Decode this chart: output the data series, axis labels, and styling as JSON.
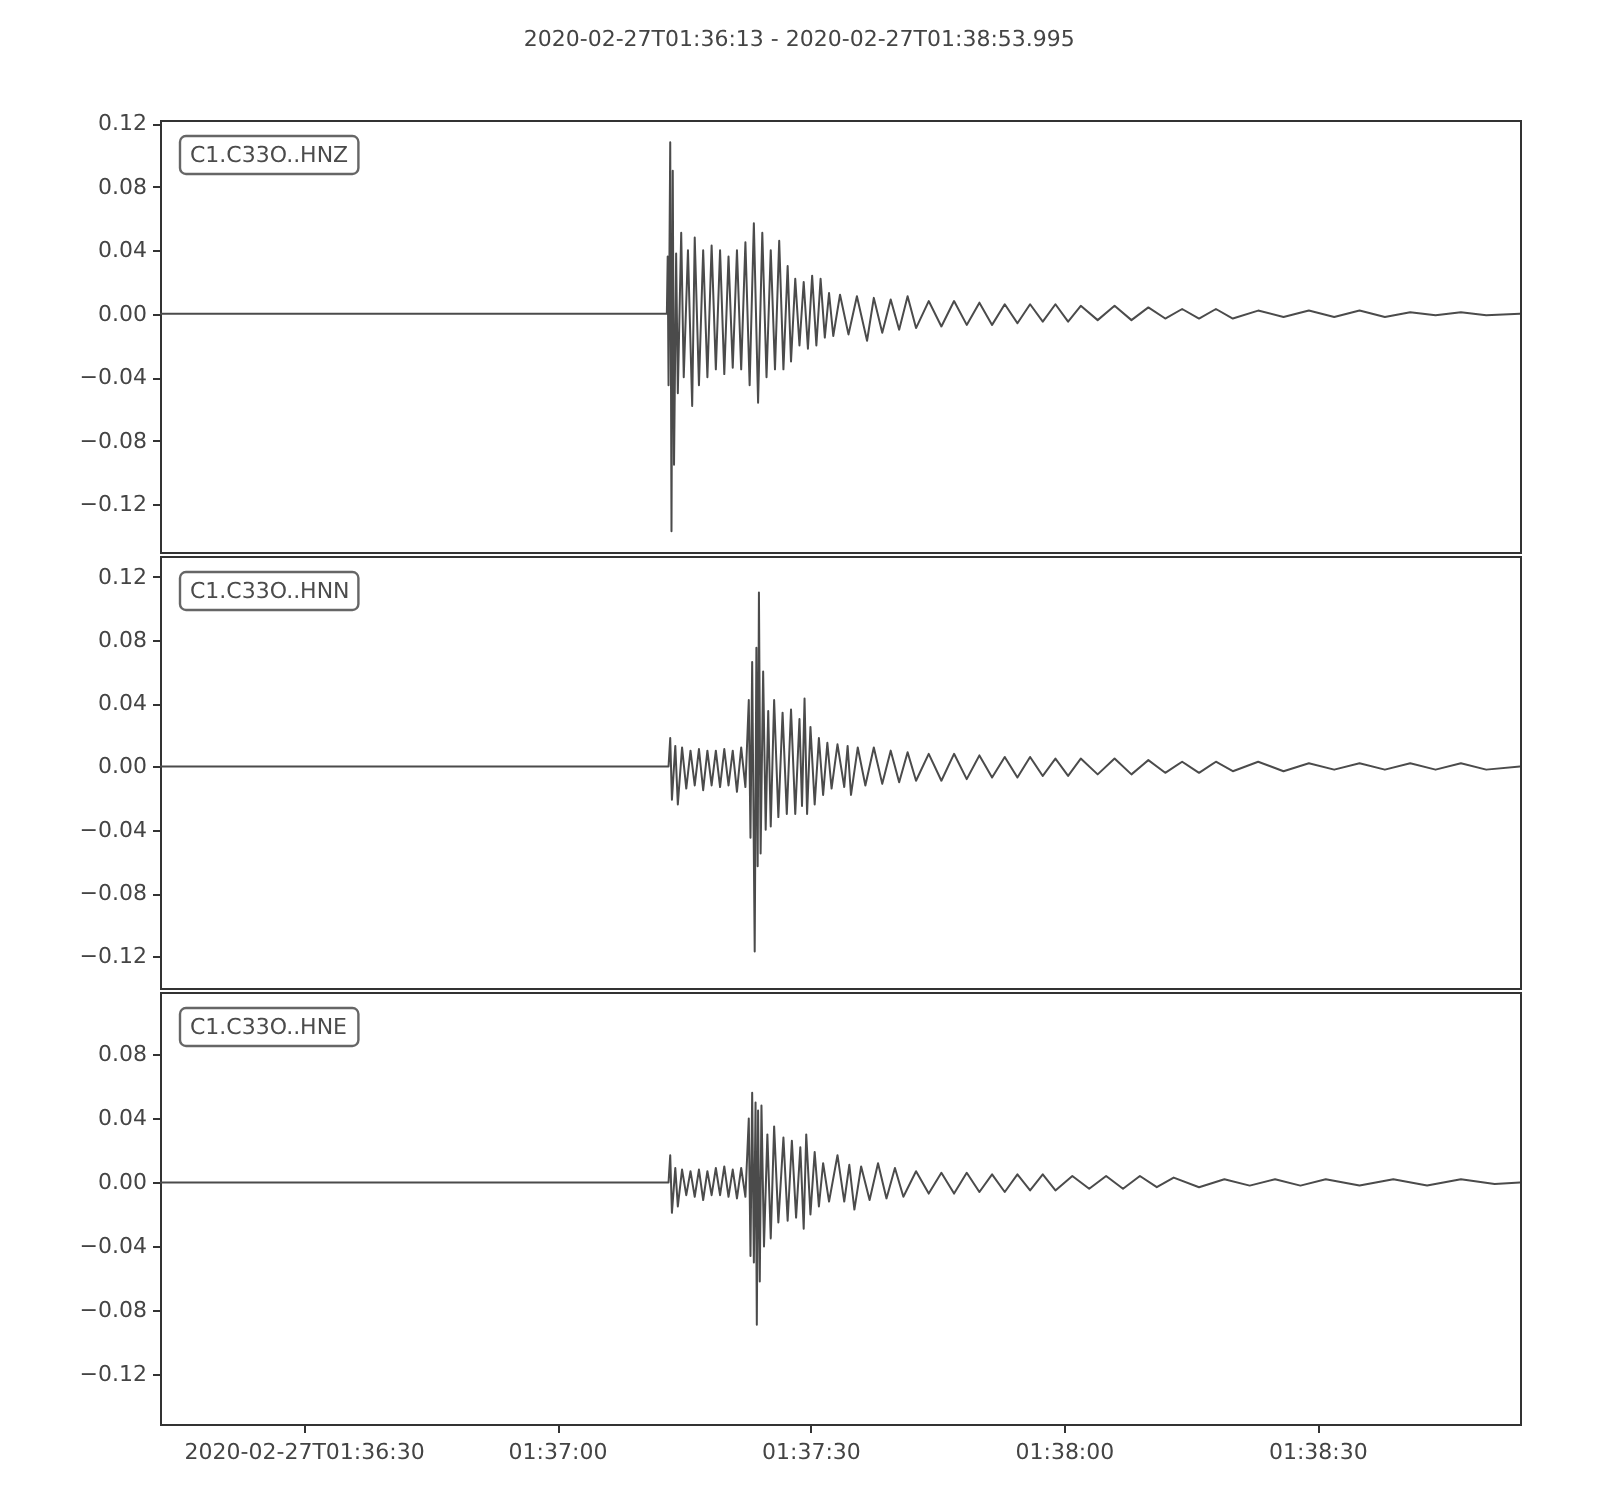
{
  "chart_data": [
    {
      "type": "line",
      "title": "2020-02-27T01:36:13  -  2020-02-27T01:38:53.995",
      "legend": "top left",
      "tick_labels": "y",
      "xlim": [
        "2020-02-27T01:36:13",
        "2020-02-27T01:38:53.995"
      ],
      "ylim": [
        -0.15,
        0.122
      ],
      "yticks": [
        {
          "value": -0.12,
          "label": "−0.12"
        },
        {
          "value": -0.08,
          "label": "−0.08"
        },
        {
          "value": -0.04,
          "label": "−0.04"
        },
        {
          "value": 0,
          "label": "0.00"
        },
        0.04,
        0.08,
        0.12
      ],
      "series": [
        {
          "name": "C1.C33O..HNZ",
          "color": "#4b4b4b",
          "x": [
            "2020-02-27T01:36:13",
            "2020-02-27T01:37:13",
            "2020-02-27T01:37:13.1",
            "2020-02-27T01:37:13.2",
            "2020-02-27T01:37:13.4",
            "2020-02-27T01:37:13.55",
            "2020-02-27T01:37:13.7",
            "2020-02-27T01:37:13.85",
            "2020-02-27T01:37:14.1",
            "2020-02-27T01:37:14.3",
            "2020-02-27T01:37:14.7",
            "2020-02-27T01:37:15",
            "2020-02-27T01:37:15.5",
            "2020-02-27T01:37:16",
            "2020-02-27T01:37:16.3",
            "2020-02-27T01:37:16.8",
            "2020-02-27T01:37:17.3",
            "2020-02-27T01:37:17.8",
            "2020-02-27T01:37:18.3",
            "2020-02-27T01:37:18.8",
            "2020-02-27T01:37:19.3",
            "2020-02-27T01:37:19.8",
            "2020-02-27T01:37:20.3",
            "2020-02-27T01:37:20.8",
            "2020-02-27T01:37:21.3",
            "2020-02-27T01:37:21.8",
            "2020-02-27T01:37:22.3",
            "2020-02-27T01:37:22.8",
            "2020-02-27T01:37:23.3",
            "2020-02-27T01:37:23.8",
            "2020-02-27T01:37:24.3",
            "2020-02-27T01:37:24.8",
            "2020-02-27T01:37:25.3",
            "2020-02-27T01:37:25.8",
            "2020-02-27T01:37:26.3",
            "2020-02-27T01:37:26.8",
            "2020-02-27T01:37:27.3",
            "2020-02-27T01:37:27.7",
            "2020-02-27T01:37:28.2",
            "2020-02-27T01:37:28.7",
            "2020-02-27T01:37:29.2",
            "2020-02-27T01:37:29.7",
            "2020-02-27T01:37:30.2",
            "2020-02-27T01:37:30.7",
            "2020-02-27T01:37:31.2",
            "2020-02-27T01:37:31.7",
            "2020-02-27T01:37:32.2",
            "2020-02-27T01:37:32.7",
            "2020-02-27T01:37:33.5",
            "2020-02-27T01:37:34.5",
            "2020-02-27T01:37:35.5",
            "2020-02-27T01:37:36.7",
            "2020-02-27T01:37:37.5",
            "2020-02-27T01:37:38.5",
            "2020-02-27T01:37:39.5",
            "2020-02-27T01:37:40.5",
            "2020-02-27T01:37:41.5",
            "2020-02-27T01:37:42.5",
            "2020-02-27T01:37:44",
            "2020-02-27T01:37:45.5",
            "2020-02-27T01:37:47",
            "2020-02-27T01:37:48.5",
            "2020-02-27T01:37:50",
            "2020-02-27T01:37:51.5",
            "2020-02-27T01:37:53",
            "2020-02-27T01:37:54.5",
            "2020-02-27T01:37:56",
            "2020-02-27T01:37:57.5",
            "2020-02-27T01:37:59",
            "2020-02-27T01:38:00.5",
            "2020-02-27T01:38:02",
            "2020-02-27T01:38:04",
            "2020-02-27T01:38:06",
            "2020-02-27T01:38:08",
            "2020-02-27T01:38:10",
            "2020-02-27T01:38:12",
            "2020-02-27T01:38:14",
            "2020-02-27T01:38:16",
            "2020-02-27T01:38:18",
            "2020-02-27T01:38:20",
            "2020-02-27T01:38:23",
            "2020-02-27T01:38:26",
            "2020-02-27T01:38:29",
            "2020-02-27T01:38:32",
            "2020-02-27T01:38:35",
            "2020-02-27T01:38:38",
            "2020-02-27T01:38:41",
            "2020-02-27T01:38:44",
            "2020-02-27T01:38:47",
            "2020-02-27T01:38:50",
            "2020-02-27T01:38:53.995"
          ],
          "values": [
            0,
            0,
            0.036,
            -0.045,
            0.108,
            -0.137,
            0.09,
            -0.095,
            0.038,
            -0.05,
            0.051,
            -0.04,
            0.04,
            -0.058,
            0.048,
            -0.045,
            0.04,
            -0.04,
            0.043,
            -0.035,
            0.04,
            -0.038,
            0.036,
            -0.034,
            0.04,
            -0.035,
            0.045,
            -0.045,
            0.057,
            -0.056,
            0.051,
            -0.04,
            0.04,
            -0.035,
            0.046,
            -0.035,
            0.03,
            -0.03,
            0.022,
            -0.02,
            0.02,
            -0.022,
            0.024,
            -0.02,
            0.022,
            -0.015,
            0.013,
            -0.014,
            0.012,
            -0.013,
            0.011,
            -0.017,
            0.01,
            -0.012,
            0.009,
            -0.01,
            0.011,
            -0.009,
            0.008,
            -0.008,
            0.008,
            -0.007,
            0.007,
            -0.007,
            0.006,
            -0.006,
            0.006,
            -0.005,
            0.006,
            -0.005,
            0.005,
            -0.004,
            0.005,
            -0.004,
            0.004,
            -0.003,
            0.003,
            -0.003,
            0.003,
            -0.003,
            0.002,
            -0.002,
            0.002,
            -0.002,
            0.002,
            -0.002,
            0.001,
            -0.001,
            0.001,
            -0.001,
            0
          ]
        }
      ]
    },
    {
      "type": "line",
      "legend": "top left",
      "tick_labels": "y",
      "xlim": [
        "2020-02-27T01:36:13",
        "2020-02-27T01:38:53.995"
      ],
      "ylim": [
        -0.14,
        0.133
      ],
      "yticks": [
        {
          "value": -0.12,
          "label": "−0.12"
        },
        {
          "value": -0.08,
          "label": "−0.08"
        },
        {
          "value": -0.04,
          "label": "−0.04"
        },
        {
          "value": 0,
          "label": "0.00"
        },
        0.04,
        0.08,
        0.12
      ],
      "series": [
        {
          "name": "C1.C33O..HNN",
          "color": "#4b4b4b",
          "x": [
            "2020-02-27T01:36:13",
            "2020-02-27T01:37:13.2",
            "2020-02-27T01:37:13.4",
            "2020-02-27T01:37:13.6",
            "2020-02-27T01:37:14",
            "2020-02-27T01:37:14.3",
            "2020-02-27T01:37:14.8",
            "2020-02-27T01:37:15.3",
            "2020-02-27T01:37:15.8",
            "2020-02-27T01:37:16.3",
            "2020-02-27T01:37:16.8",
            "2020-02-27T01:37:17.3",
            "2020-02-27T01:37:17.8",
            "2020-02-27T01:37:18.3",
            "2020-02-27T01:37:18.8",
            "2020-02-27T01:37:19.3",
            "2020-02-27T01:37:19.8",
            "2020-02-27T01:37:20.3",
            "2020-02-27T01:37:20.8",
            "2020-02-27T01:37:21.3",
            "2020-02-27T01:37:21.8",
            "2020-02-27T01:37:22.3",
            "2020-02-27T01:37:22.7",
            "2020-02-27T01:37:22.9",
            "2020-02-27T01:37:23.1",
            "2020-02-27T01:37:23.4",
            "2020-02-27T01:37:23.6",
            "2020-02-27T01:37:23.75",
            "2020-02-27T01:37:23.9",
            "2020-02-27T01:37:24.1",
            "2020-02-27T01:37:24.4",
            "2020-02-27T01:37:24.7",
            "2020-02-27T01:37:25",
            "2020-02-27T01:37:25.3",
            "2020-02-27T01:37:25.7",
            "2020-02-27T01:37:26.2",
            "2020-02-27T01:37:26.7",
            "2020-02-27T01:37:27.2",
            "2020-02-27T01:37:27.7",
            "2020-02-27T01:37:28.2",
            "2020-02-27T01:37:28.7",
            "2020-02-27T01:37:29",
            "2020-02-27T01:37:29.3",
            "2020-02-27T01:37:29.6",
            "2020-02-27T01:37:30",
            "2020-02-27T01:37:30.5",
            "2020-02-27T01:37:31",
            "2020-02-27T01:37:31.5",
            "2020-02-27T01:37:32",
            "2020-02-27T01:37:32.5",
            "2020-02-27T01:37:33.2",
            "2020-02-27T01:37:34",
            "2020-02-27T01:37:34.4",
            "2020-02-27T01:37:34.8",
            "2020-02-27T01:37:35.6",
            "2020-02-27T01:37:36.5",
            "2020-02-27T01:37:37.5",
            "2020-02-27T01:37:38.5",
            "2020-02-27T01:37:39.5",
            "2020-02-27T01:37:40.5",
            "2020-02-27T01:37:41.5",
            "2020-02-27T01:37:42.5",
            "2020-02-27T01:37:44",
            "2020-02-27T01:37:45.5",
            "2020-02-27T01:37:47",
            "2020-02-27T01:37:48.5",
            "2020-02-27T01:37:50",
            "2020-02-27T01:37:51.5",
            "2020-02-27T01:37:53",
            "2020-02-27T01:37:54.5",
            "2020-02-27T01:37:56",
            "2020-02-27T01:37:57.5",
            "2020-02-27T01:37:59",
            "2020-02-27T01:38:00.5",
            "2020-02-27T01:38:02",
            "2020-02-27T01:38:04",
            "2020-02-27T01:38:06",
            "2020-02-27T01:38:08",
            "2020-02-27T01:38:10",
            "2020-02-27T01:38:12",
            "2020-02-27T01:38:14",
            "2020-02-27T01:38:16",
            "2020-02-27T01:38:18",
            "2020-02-27T01:38:20",
            "2020-02-27T01:38:23",
            "2020-02-27T01:38:26",
            "2020-02-27T01:38:29",
            "2020-02-27T01:38:32",
            "2020-02-27T01:38:35",
            "2020-02-27T01:38:38",
            "2020-02-27T01:38:41",
            "2020-02-27T01:38:44",
            "2020-02-27T01:38:47",
            "2020-02-27T01:38:50",
            "2020-02-27T01:38:53.995"
          ],
          "values": [
            0,
            0,
            0.018,
            -0.021,
            0.013,
            -0.024,
            0.012,
            -0.014,
            0.01,
            -0.012,
            0.011,
            -0.015,
            0.01,
            -0.012,
            0.01,
            -0.013,
            0.011,
            -0.012,
            0.01,
            -0.016,
            0.012,
            -0.013,
            0.042,
            -0.045,
            0.066,
            -0.117,
            0.075,
            -0.063,
            0.11,
            -0.055,
            0.06,
            -0.04,
            0.035,
            -0.038,
            0.042,
            -0.032,
            0.034,
            -0.03,
            0.036,
            -0.03,
            0.03,
            -0.025,
            0.043,
            -0.03,
            0.025,
            -0.024,
            0.018,
            -0.018,
            0.015,
            -0.014,
            0.014,
            -0.013,
            0.013,
            -0.018,
            0.012,
            -0.012,
            0.012,
            -0.011,
            0.01,
            -0.01,
            0.009,
            -0.009,
            0.008,
            -0.009,
            0.008,
            -0.008,
            0.007,
            -0.007,
            0.006,
            -0.007,
            0.006,
            -0.006,
            0.005,
            -0.006,
            0.005,
            -0.005,
            0.005,
            -0.005,
            0.004,
            -0.004,
            0.003,
            -0.004,
            0.003,
            -0.003,
            0.003,
            -0.003,
            0.002,
            -0.002,
            0.002,
            -0.002,
            0.002,
            -0.002,
            0.002,
            -0.002,
            0
          ]
        }
      ]
    },
    {
      "type": "line",
      "legend": "top left",
      "xlim": [
        "2020-02-27T01:36:13",
        "2020-02-27T01:38:53.995"
      ],
      "xticks": [
        {
          "value": "2020-02-27T01:36:30",
          "label": "2020-02-27T01:36:30"
        },
        {
          "value": "2020-02-27T01:37:00",
          "label": "01:37:00"
        },
        {
          "value": "2020-02-27T01:37:30",
          "label": "01:37:30"
        },
        {
          "value": "2020-02-27T01:38:00",
          "label": "01:38:00"
        },
        {
          "value": "2020-02-27T01:38:30",
          "label": "01:38:30"
        }
      ],
      "ylim": [
        -0.151,
        0.119
      ],
      "yticks": [
        {
          "value": -0.12,
          "label": "−0.12"
        },
        {
          "value": -0.08,
          "label": "−0.08"
        },
        {
          "value": -0.04,
          "label": "−0.04"
        },
        {
          "value": 0,
          "label": "0.00"
        },
        0.04,
        0.08
      ],
      "series": [
        {
          "name": "C1.C33O..HNE",
          "color": "#4b4b4b",
          "x": [
            "2020-02-27T01:36:13",
            "2020-02-27T01:37:13.2",
            "2020-02-27T01:37:13.4",
            "2020-02-27T01:37:13.6",
            "2020-02-27T01:37:14",
            "2020-02-27T01:37:14.3",
            "2020-02-27T01:37:14.8",
            "2020-02-27T01:37:15.3",
            "2020-02-27T01:37:15.8",
            "2020-02-27T01:37:16.3",
            "2020-02-27T01:37:16.8",
            "2020-02-27T01:37:17.3",
            "2020-02-27T01:37:17.8",
            "2020-02-27T01:37:18.3",
            "2020-02-27T01:37:18.8",
            "2020-02-27T01:37:19.3",
            "2020-02-27T01:37:19.8",
            "2020-02-27T01:37:20.3",
            "2020-02-27T01:37:20.8",
            "2020-02-27T01:37:21.3",
            "2020-02-27T01:37:21.8",
            "2020-02-27T01:37:22.3",
            "2020-02-27T01:37:22.7",
            "2020-02-27T01:37:22.9",
            "2020-02-27T01:37:23.1",
            "2020-02-27T01:37:23.3",
            "2020-02-27T01:37:23.5",
            "2020-02-27T01:37:23.65",
            "2020-02-27T01:37:23.8",
            "2020-02-27T01:37:24",
            "2020-02-27T01:37:24.2",
            "2020-02-27T01:37:24.5",
            "2020-02-27T01:37:24.9",
            "2020-02-27T01:37:25.3",
            "2020-02-27T01:37:25.7",
            "2020-02-27T01:37:26.2",
            "2020-02-27T01:37:26.8",
            "2020-02-27T01:37:27.3",
            "2020-02-27T01:37:27.8",
            "2020-02-27T01:37:28.3",
            "2020-02-27T01:37:28.8",
            "2020-02-27T01:37:29.2",
            "2020-02-27T01:37:29.5",
            "2020-02-27T01:37:30",
            "2020-02-27T01:37:30.5",
            "2020-02-27T01:37:31",
            "2020-02-27T01:37:31.5",
            "2020-02-27T01:37:32.2",
            "2020-02-27T01:37:33.2",
            "2020-02-27T01:37:34",
            "2020-02-27T01:37:34.6",
            "2020-02-27T01:37:35.2",
            "2020-02-27T01:37:36",
            "2020-02-27T01:37:37",
            "2020-02-27T01:37:38",
            "2020-02-27T01:37:39",
            "2020-02-27T01:37:40",
            "2020-02-27T01:37:41",
            "2020-02-27T01:37:42.5",
            "2020-02-27T01:37:44",
            "2020-02-27T01:37:45.5",
            "2020-02-27T01:37:47",
            "2020-02-27T01:37:48.5",
            "2020-02-27T01:37:50",
            "2020-02-27T01:37:51.5",
            "2020-02-27T01:37:53",
            "2020-02-27T01:37:54.5",
            "2020-02-27T01:37:56",
            "2020-02-27T01:37:57.5",
            "2020-02-27T01:37:59",
            "2020-02-27T01:38:01",
            "2020-02-27T01:38:03",
            "2020-02-27T01:38:05",
            "2020-02-27T01:38:07",
            "2020-02-27T01:38:09",
            "2020-02-27T01:38:11",
            "2020-02-27T01:38:13",
            "2020-02-27T01:38:16",
            "2020-02-27T01:38:19",
            "2020-02-27T01:38:22",
            "2020-02-27T01:38:25",
            "2020-02-27T01:38:28",
            "2020-02-27T01:38:31",
            "2020-02-27T01:38:35",
            "2020-02-27T01:38:39",
            "2020-02-27T01:38:43",
            "2020-02-27T01:38:47",
            "2020-02-27T01:38:51",
            "2020-02-27T01:38:53.995"
          ],
          "values": [
            0,
            0,
            0.017,
            -0.019,
            0.009,
            -0.015,
            0.008,
            -0.008,
            0.007,
            -0.009,
            0.008,
            -0.011,
            0.007,
            -0.008,
            0.009,
            -0.008,
            0.01,
            -0.009,
            0.008,
            -0.01,
            0.009,
            -0.009,
            0.04,
            -0.046,
            0.056,
            -0.05,
            0.05,
            -0.089,
            0.045,
            -0.062,
            0.048,
            -0.04,
            0.03,
            -0.035,
            0.035,
            -0.025,
            0.028,
            -0.024,
            0.026,
            -0.022,
            0.022,
            -0.029,
            0.03,
            -0.02,
            0.019,
            -0.015,
            0.012,
            -0.012,
            0.017,
            -0.012,
            0.011,
            -0.017,
            0.01,
            -0.011,
            0.012,
            -0.01,
            0.009,
            -0.009,
            0.007,
            -0.007,
            0.006,
            -0.007,
            0.006,
            -0.006,
            0.005,
            -0.006,
            0.005,
            -0.005,
            0.005,
            -0.005,
            0.004,
            -0.004,
            0.004,
            -0.004,
            0.004,
            -0.003,
            0.003,
            -0.003,
            0.002,
            -0.002,
            0.002,
            -0.002,
            0.002,
            -0.002,
            0.002,
            -0.002,
            0.002,
            -0.001,
            0
          ]
        }
      ]
    }
  ]
}
